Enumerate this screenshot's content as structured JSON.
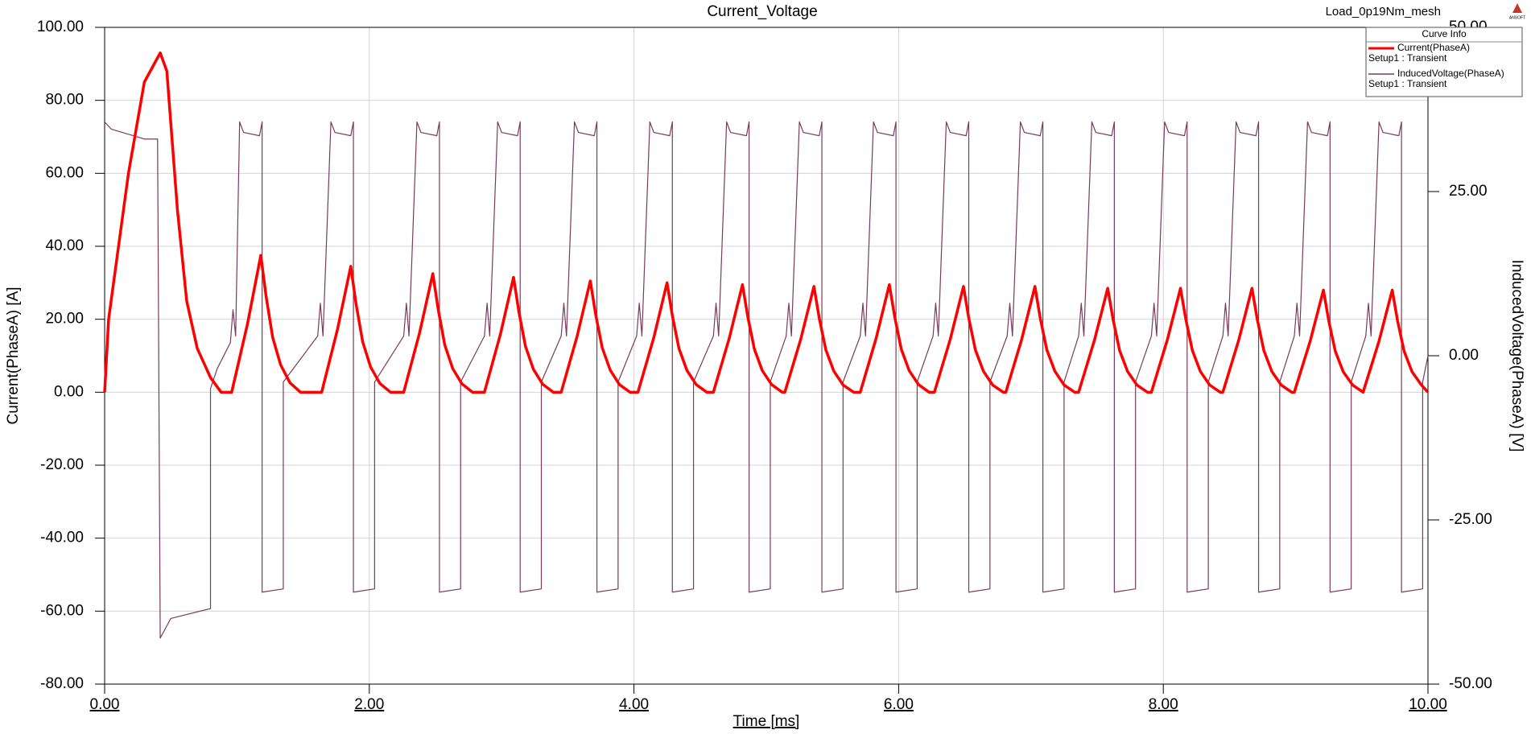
{
  "chart_data": {
    "type": "line",
    "title": "Current_Voltage",
    "design": "Load_0p19Nm_mesh",
    "logo": "ANSOFT",
    "legend_title": "Curve Info",
    "xlabel": "Time [ms]",
    "ylabel": "Current(PhaseA) [A]",
    "y2label": "InducedVoltage(PhaseA) [V]",
    "xlim": [
      0,
      10
    ],
    "xticks": [
      {
        "value": 0,
        "label": "0.00"
      },
      {
        "value": 2,
        "label": "2.00"
      },
      {
        "value": 4,
        "label": "4.00"
      },
      {
        "value": 6,
        "label": "6.00"
      },
      {
        "value": 8,
        "label": "8.00"
      },
      {
        "value": 10,
        "label": "10.00"
      }
    ],
    "ylim": [
      -80,
      100
    ],
    "yticks": [
      {
        "value": -80,
        "label": "-80.00"
      },
      {
        "value": -60,
        "label": "-60.00"
      },
      {
        "value": -40,
        "label": "-40.00"
      },
      {
        "value": -20,
        "label": "-20.00"
      },
      {
        "value": 0,
        "label": "0.00"
      },
      {
        "value": 20,
        "label": "20.00"
      },
      {
        "value": 40,
        "label": "40.00"
      },
      {
        "value": 60,
        "label": "60.00"
      },
      {
        "value": 80,
        "label": "80.00"
      },
      {
        "value": 100,
        "label": "100.00"
      }
    ],
    "y2lim": [
      -50,
      50
    ],
    "y2ticks": [
      {
        "value": -50,
        "label": "-50.00"
      },
      {
        "value": -25,
        "label": "-25.00"
      },
      {
        "value": 0,
        "label": "0.00"
      },
      {
        "value": 25,
        "label": "25.00"
      },
      {
        "value": 50,
        "label": "50.00"
      }
    ],
    "grid": true,
    "legend": "upper right",
    "series": [
      {
        "name": "Current(PhaseA)",
        "solution": "Setup1 : Transient",
        "color": "#ff0000",
        "axis": "y",
        "x": [
          0,
          0.03,
          0.18,
          0.3,
          0.42,
          0.47,
          0.55,
          0.62,
          0.7,
          0.8,
          0.88,
          0.96,
          1.08,
          1.18,
          1.22,
          1.27,
          1.33,
          1.4,
          1.48,
          1.64,
          1.76,
          1.86,
          1.9,
          1.95,
          2.01,
          2.08,
          2.16,
          2.26,
          2.38,
          2.48,
          2.52,
          2.57,
          2.63,
          2.7,
          2.78,
          2.87,
          2.99,
          3.09,
          3.13,
          3.18,
          3.24,
          3.31,
          3.39,
          3.45,
          3.57,
          3.67,
          3.71,
          3.76,
          3.82,
          3.89,
          3.97,
          4.03,
          4.15,
          4.25,
          4.29,
          4.34,
          4.4,
          4.47,
          4.55,
          4.6,
          4.72,
          4.82,
          4.86,
          4.91,
          4.97,
          5.04,
          5.12,
          5.14,
          5.26,
          5.36,
          5.4,
          5.45,
          5.51,
          5.58,
          5.66,
          5.71,
          5.83,
          5.93,
          5.97,
          6.02,
          6.08,
          6.15,
          6.23,
          6.27,
          6.39,
          6.49,
          6.53,
          6.58,
          6.64,
          6.71,
          6.79,
          6.81,
          6.93,
          7.03,
          7.07,
          7.12,
          7.18,
          7.25,
          7.33,
          7.36,
          7.48,
          7.58,
          7.62,
          7.67,
          7.73,
          7.8,
          7.88,
          7.91,
          8.03,
          8.13,
          8.17,
          8.22,
          8.28,
          8.35,
          8.43,
          8.45,
          8.57,
          8.67,
          8.71,
          8.76,
          8.82,
          8.89,
          8.97,
          8.99,
          9.11,
          9.21,
          9.25,
          9.3,
          9.36,
          9.43,
          9.51,
          9.63,
          9.73,
          9.77,
          9.82,
          9.88,
          9.95,
          10.0
        ],
        "values": [
          0,
          20,
          60,
          85,
          93,
          88,
          50,
          25,
          12,
          4,
          0,
          0,
          18.8,
          37.5,
          26.3,
          15,
          7.5,
          2.6,
          0,
          0,
          17.3,
          34.5,
          24.2,
          13.8,
          6.9,
          2.4,
          0,
          0,
          16.3,
          32.5,
          22.8,
          13,
          6.5,
          2.3,
          0,
          0,
          15.8,
          31.5,
          22.1,
          12.6,
          6.3,
          2.2,
          0,
          0,
          15.3,
          30.5,
          21.4,
          12.2,
          6.1,
          2.1,
          0,
          0,
          15,
          30,
          21,
          12,
          6,
          2.1,
          0,
          0,
          14.8,
          29.5,
          20.7,
          11.8,
          5.9,
          2.1,
          0,
          0,
          14.5,
          29,
          20.3,
          11.6,
          5.8,
          2,
          0,
          0,
          14.8,
          29.5,
          20.7,
          11.8,
          5.9,
          2.1,
          0,
          0,
          14.5,
          29,
          20.3,
          11.6,
          5.8,
          2,
          0,
          0,
          14.5,
          29,
          20.3,
          11.6,
          5.8,
          2,
          0,
          0,
          14.3,
          28.5,
          20,
          11.4,
          5.7,
          2,
          0,
          0,
          14.3,
          28.5,
          20,
          11.4,
          5.7,
          2,
          0,
          0,
          14.3,
          28.5,
          20,
          11.4,
          5.7,
          2,
          0,
          0,
          14,
          28,
          19.6,
          11.2,
          5.6,
          2,
          0,
          14,
          28,
          19.6,
          11.2,
          5.6,
          2,
          0
        ]
      },
      {
        "name": "InducedVoltage(PhaseA)",
        "solution": "Setup1 : Transient",
        "color": "#7b3a5a",
        "axis": "y2",
        "x": [
          0,
          0.05,
          0.3,
          0.4,
          0.42,
          0.5,
          0.8,
          0.8,
          0.85,
          0.95,
          0.97,
          0.99,
          1.02,
          1.05,
          1.17,
          1.19,
          1.19,
          1.35,
          1.35,
          1.61,
          1.63,
          1.65,
          1.71,
          1.74,
          1.86,
          1.88,
          1.88,
          2.04,
          2.04,
          2.26,
          2.28,
          2.3,
          2.36,
          2.39,
          2.51,
          2.53,
          2.53,
          2.69,
          2.69,
          2.87,
          2.89,
          2.91,
          2.97,
          3.0,
          3.12,
          3.14,
          3.14,
          3.3,
          3.3,
          3.45,
          3.47,
          3.49,
          3.55,
          3.58,
          3.7,
          3.72,
          3.72,
          3.88,
          3.88,
          4.02,
          4.04,
          4.06,
          4.12,
          4.15,
          4.27,
          4.29,
          4.29,
          4.45,
          4.45,
          4.6,
          4.62,
          4.64,
          4.7,
          4.73,
          4.85,
          4.87,
          4.87,
          5.03,
          5.03,
          5.15,
          5.17,
          5.19,
          5.25,
          5.28,
          5.4,
          5.42,
          5.42,
          5.58,
          5.58,
          5.71,
          5.73,
          5.75,
          5.81,
          5.84,
          5.96,
          5.98,
          5.98,
          6.14,
          6.14,
          6.26,
          6.28,
          6.3,
          6.36,
          6.39,
          6.51,
          6.53,
          6.53,
          6.69,
          6.69,
          6.82,
          6.84,
          6.86,
          6.92,
          6.95,
          7.07,
          7.09,
          7.09,
          7.25,
          7.25,
          7.36,
          7.38,
          7.4,
          7.46,
          7.49,
          7.61,
          7.63,
          7.63,
          7.79,
          7.79,
          7.91,
          7.93,
          7.95,
          8.01,
          8.04,
          8.16,
          8.18,
          8.18,
          8.34,
          8.34,
          8.45,
          8.47,
          8.49,
          8.55,
          8.58,
          8.7,
          8.72,
          8.72,
          8.88,
          8.88,
          8.99,
          9.01,
          9.03,
          9.09,
          9.12,
          9.24,
          9.26,
          9.26,
          9.42,
          9.42,
          9.53,
          9.55,
          9.57,
          9.63,
          9.66,
          9.78,
          9.8,
          9.8,
          9.96,
          9.96,
          10.0
        ],
        "values": [
          35.6,
          34.5,
          33,
          33,
          -43,
          -40,
          -38.5,
          -5,
          -2,
          2,
          7,
          3,
          35.6,
          34,
          33.5,
          35.6,
          -36,
          -35.5,
          -4,
          3,
          8,
          3,
          35.6,
          34,
          33.5,
          35.6,
          -36,
          -35.5,
          -4,
          3,
          8,
          3,
          35.6,
          34,
          33.5,
          35.6,
          -36,
          -35.5,
          -4,
          3,
          8,
          3,
          35.6,
          34,
          33.5,
          35.6,
          -36,
          -35.5,
          -4,
          3,
          8,
          3,
          35.6,
          34,
          33.5,
          35.6,
          -36,
          -35.5,
          -4,
          3,
          8,
          3,
          35.6,
          34,
          33.5,
          35.6,
          -36,
          -35.5,
          -4,
          3,
          8,
          3,
          35.6,
          34,
          33.5,
          35.6,
          -36,
          -35.5,
          -4,
          3,
          8,
          3,
          35.6,
          34,
          33.5,
          35.6,
          -36,
          -35.5,
          -4,
          3,
          8,
          3,
          35.6,
          34,
          33.5,
          35.6,
          -36,
          -35.5,
          -4,
          3,
          8,
          3,
          35.6,
          34,
          33.5,
          35.6,
          -36,
          -35.5,
          -4,
          3,
          8,
          3,
          35.6,
          34,
          33.5,
          35.6,
          -36,
          -35.5,
          -4,
          3,
          8,
          3,
          35.6,
          34,
          33.5,
          35.6,
          -36,
          -35.5,
          -4,
          3,
          8,
          3,
          35.6,
          34,
          33.5,
          35.6,
          -36,
          -35.5,
          -4,
          3,
          8,
          3,
          35.6,
          34,
          33.5,
          35.6,
          -36,
          -35.5,
          -4,
          3,
          8,
          3,
          35.6,
          34,
          33.5,
          35.6,
          -36,
          -35.5,
          -4,
          3,
          8,
          3,
          35.6,
          34,
          33.5,
          35.6,
          -36,
          -35.5,
          -4,
          0
        ]
      }
    ]
  }
}
